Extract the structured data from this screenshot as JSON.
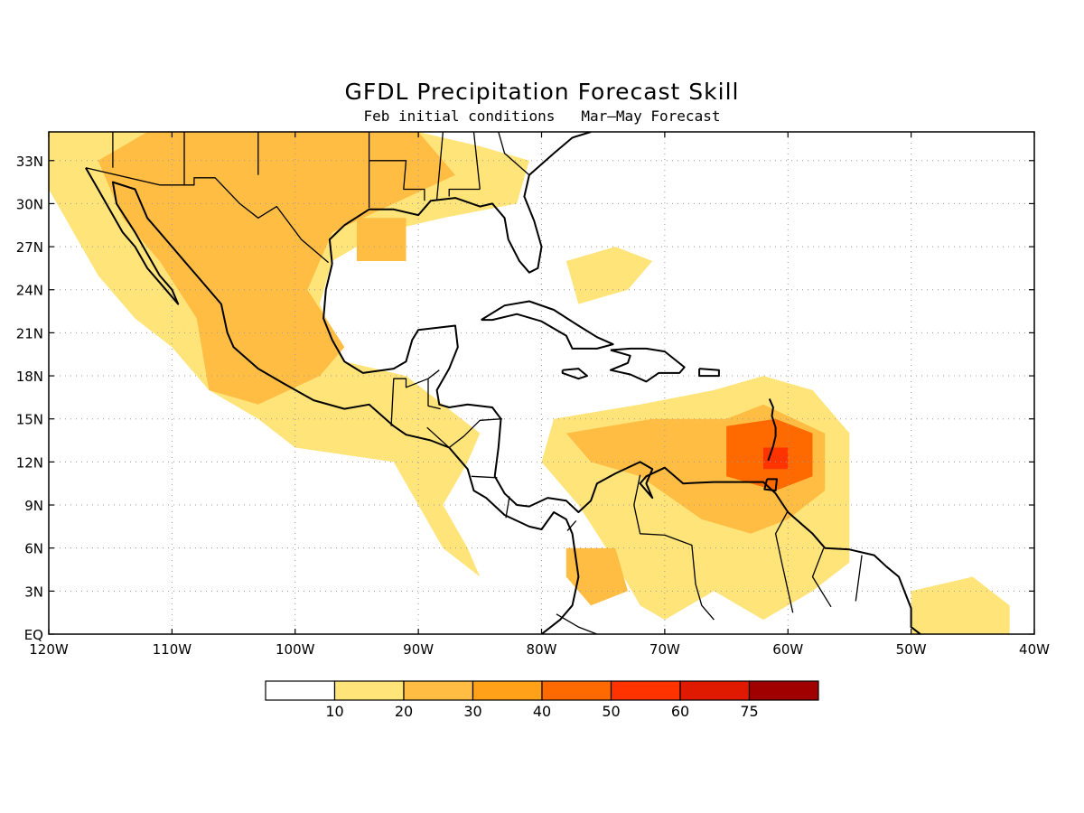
{
  "map": {
    "title": "GFDL Precipitation Forecast Skill",
    "subtitle": "Feb initial conditions   Mar–May Forecast",
    "lon_range": [
      -120,
      -40
    ],
    "lat_range": [
      0,
      35
    ],
    "grid": "dotted",
    "lon_ticks": [
      {
        "value": -120,
        "label": "120W"
      },
      {
        "value": -110,
        "label": "110W"
      },
      {
        "value": -100,
        "label": "100W"
      },
      {
        "value": -90,
        "label": "90W"
      },
      {
        "value": -80,
        "label": "80W"
      },
      {
        "value": -70,
        "label": "70W"
      },
      {
        "value": -60,
        "label": "60W"
      },
      {
        "value": -50,
        "label": "50W"
      },
      {
        "value": -40,
        "label": "40W"
      }
    ],
    "lat_ticks": [
      {
        "value": 0,
        "label": "EQ"
      },
      {
        "value": 3,
        "label": "3N"
      },
      {
        "value": 6,
        "label": "6N"
      },
      {
        "value": 9,
        "label": "9N"
      },
      {
        "value": 12,
        "label": "12N"
      },
      {
        "value": 15,
        "label": "15N"
      },
      {
        "value": 18,
        "label": "18N"
      },
      {
        "value": 21,
        "label": "21N"
      },
      {
        "value": 24,
        "label": "24N"
      },
      {
        "value": 27,
        "label": "27N"
      },
      {
        "value": 30,
        "label": "30N"
      },
      {
        "value": 33,
        "label": "33N"
      }
    ]
  },
  "colorbar": {
    "colors": [
      "#ffffff",
      "#ffe47a",
      "#ffbd44",
      "#ffa21a",
      "#ff6a00",
      "#ff3300",
      "#e01a00",
      "#a00000"
    ],
    "labels": [
      "10",
      "20",
      "30",
      "40",
      "50",
      "60",
      "75"
    ]
  },
  "skill_regions": [
    {
      "level": 1,
      "points": [
        [
          -120,
          35
        ],
        [
          -90,
          35
        ],
        [
          -85,
          34
        ],
        [
          -81,
          33
        ],
        [
          -82,
          30
        ],
        [
          -88,
          29
        ],
        [
          -93,
          28
        ],
        [
          -97,
          26
        ],
        [
          -98,
          23
        ],
        [
          -96,
          19
        ],
        [
          -91,
          18
        ],
        [
          -88,
          16
        ],
        [
          -85,
          14
        ],
        [
          -86,
          12
        ],
        [
          -88,
          9
        ],
        [
          -86,
          6
        ],
        [
          -85,
          4
        ],
        [
          -88,
          6
        ],
        [
          -90,
          9
        ],
        [
          -92,
          12
        ],
        [
          -100,
          13
        ],
        [
          -103,
          15
        ],
        [
          -107,
          17
        ],
        [
          -110,
          20
        ],
        [
          -113,
          22
        ],
        [
          -116,
          25
        ],
        [
          -118,
          28
        ],
        [
          -120,
          31
        ]
      ]
    },
    {
      "level": 1,
      "points": [
        [
          -79,
          15
        ],
        [
          -72,
          16
        ],
        [
          -66,
          17
        ],
        [
          -62,
          18
        ],
        [
          -58,
          17
        ],
        [
          -55,
          14
        ],
        [
          -55,
          5
        ],
        [
          -58,
          3
        ],
        [
          -62,
          1
        ],
        [
          -66,
          3
        ],
        [
          -70,
          1
        ],
        [
          -72,
          2
        ],
        [
          -74,
          5
        ],
        [
          -77,
          9
        ],
        [
          -80,
          12
        ]
      ]
    },
    {
      "level": 1,
      "points": [
        [
          -50,
          3
        ],
        [
          -45,
          4
        ],
        [
          -42,
          2
        ],
        [
          -42,
          0
        ],
        [
          -50,
          0
        ]
      ]
    },
    {
      "level": 1,
      "points": [
        [
          -78,
          26
        ],
        [
          -74,
          27
        ],
        [
          -71,
          26
        ],
        [
          -73,
          24
        ],
        [
          -77,
          23
        ]
      ]
    },
    {
      "level": 2,
      "points": [
        [
          -112,
          35
        ],
        [
          -90,
          35
        ],
        [
          -87,
          32
        ],
        [
          -92,
          30
        ],
        [
          -97,
          28
        ],
        [
          -99,
          24
        ],
        [
          -96,
          20
        ],
        [
          -98,
          18
        ],
        [
          -103,
          16
        ],
        [
          -107,
          17
        ],
        [
          -108,
          22
        ],
        [
          -111,
          26
        ],
        [
          -114,
          29
        ],
        [
          -116,
          33
        ]
      ]
    },
    {
      "level": 2,
      "points": [
        [
          -78,
          14
        ],
        [
          -71,
          15
        ],
        [
          -65,
          15
        ],
        [
          -62,
          16
        ],
        [
          -57,
          14
        ],
        [
          -57,
          10
        ],
        [
          -60,
          8
        ],
        [
          -63,
          7
        ],
        [
          -67,
          8
        ],
        [
          -72,
          11
        ],
        [
          -76,
          12
        ]
      ]
    },
    {
      "level": 2,
      "points": [
        [
          -78,
          6
        ],
        [
          -74,
          6
        ],
        [
          -73,
          3
        ],
        [
          -76,
          2
        ],
        [
          -78,
          4
        ]
      ]
    },
    {
      "level": 2,
      "points": [
        [
          -95,
          29
        ],
        [
          -91,
          29
        ],
        [
          -91,
          26
        ],
        [
          -95,
          26
        ]
      ]
    },
    {
      "level": 4,
      "points": [
        [
          -65,
          14.5
        ],
        [
          -61,
          15
        ],
        [
          -58,
          14
        ],
        [
          -58,
          11
        ],
        [
          -61,
          10
        ],
        [
          -65,
          11
        ]
      ]
    },
    {
      "level": 5,
      "points": [
        [
          -62,
          13
        ],
        [
          -60,
          13
        ],
        [
          -60,
          11.5
        ],
        [
          -62,
          11.5
        ]
      ]
    }
  ],
  "coastlines": [
    [
      [
        -117,
        32.5
      ],
      [
        -116,
        31
      ],
      [
        -115,
        29.5
      ],
      [
        -114,
        28
      ],
      [
        -113,
        27
      ],
      [
        -112,
        25.5
      ],
      [
        -110.5,
        24
      ],
      [
        -109.5,
        23
      ],
      [
        -110,
        24
      ],
      [
        -111,
        25
      ],
      [
        -112,
        26.5
      ],
      [
        -113,
        28
      ],
      [
        -114.5,
        30
      ],
      [
        -114.8,
        31.5
      ],
      [
        -113,
        31
      ],
      [
        -112,
        29
      ],
      [
        -110.5,
        27.5
      ],
      [
        -109,
        26
      ],
      [
        -108,
        25
      ],
      [
        -106,
        23
      ],
      [
        -105.5,
        21
      ],
      [
        -105,
        20
      ],
      [
        -103,
        18.5
      ],
      [
        -101,
        17.5
      ],
      [
        -98.5,
        16.3
      ],
      [
        -96,
        15.7
      ],
      [
        -94,
        16
      ],
      [
        -92,
        14.5
      ],
      [
        -91,
        13.9
      ],
      [
        -89,
        13.5
      ],
      [
        -87.5,
        13
      ],
      [
        -86,
        11.5
      ],
      [
        -85.5,
        10
      ],
      [
        -84.5,
        9.5
      ],
      [
        -83,
        8.3
      ],
      [
        -81,
        7.5
      ],
      [
        -80,
        7.3
      ],
      [
        -79,
        8.5
      ],
      [
        -78,
        8
      ],
      [
        -77.5,
        7
      ],
      [
        -77,
        4
      ],
      [
        -77.5,
        2
      ],
      [
        -78.5,
        1
      ],
      [
        -80,
        0
      ]
    ],
    [
      [
        -97,
        25.8
      ],
      [
        -97.5,
        24
      ],
      [
        -97.7,
        22
      ],
      [
        -97,
        20.5
      ],
      [
        -96,
        19
      ],
      [
        -94.5,
        18.2
      ],
      [
        -92,
        18.5
      ],
      [
        -91,
        19
      ],
      [
        -90.5,
        20.5
      ],
      [
        -90,
        21.2
      ],
      [
        -87,
        21.5
      ],
      [
        -86.8,
        20
      ],
      [
        -87.5,
        18.5
      ],
      [
        -88.5,
        17
      ],
      [
        -88.3,
        16
      ],
      [
        -87.5,
        15.8
      ],
      [
        -86,
        16
      ],
      [
        -84,
        15.8
      ],
      [
        -83.3,
        15
      ],
      [
        -83.5,
        13
      ],
      [
        -83.8,
        11
      ],
      [
        -83,
        9.8
      ],
      [
        -82,
        9
      ],
      [
        -81,
        8.9
      ],
      [
        -79.5,
        9.5
      ],
      [
        -78,
        9.3
      ],
      [
        -77,
        8.5
      ],
      [
        -76,
        9.3
      ],
      [
        -75.5,
        10.5
      ],
      [
        -74,
        11.2
      ],
      [
        -72,
        12
      ],
      [
        -71,
        11.5
      ],
      [
        -71.5,
        10.5
      ],
      [
        -71,
        9.5
      ],
      [
        -72,
        10.5
      ],
      [
        -71.5,
        11
      ],
      [
        -70,
        11.6
      ],
      [
        -68.5,
        10.5
      ],
      [
        -66,
        10.6
      ],
      [
        -64,
        10.6
      ],
      [
        -62,
        10.6
      ],
      [
        -61,
        9.8
      ],
      [
        -60,
        8.5
      ],
      [
        -58,
        7
      ],
      [
        -57,
        6
      ],
      [
        -55,
        5.9
      ],
      [
        -53,
        5.5
      ],
      [
        -52,
        4.7
      ],
      [
        -51,
        4
      ],
      [
        -50,
        1.8
      ],
      [
        -50,
        0.5
      ],
      [
        -48.5,
        -0.5
      ]
    ],
    [
      [
        -97,
        25.8
      ],
      [
        -97.2,
        27.5
      ],
      [
        -96,
        28.5
      ],
      [
        -94,
        29.6
      ],
      [
        -92,
        29.6
      ],
      [
        -90,
        29.2
      ],
      [
        -89,
        30.2
      ],
      [
        -87,
        30.4
      ],
      [
        -85,
        29.8
      ],
      [
        -84,
        30
      ],
      [
        -83,
        29
      ],
      [
        -82.7,
        27.5
      ],
      [
        -81.8,
        26
      ],
      [
        -81,
        25.2
      ],
      [
        -80.3,
        25.5
      ],
      [
        -80,
        27
      ],
      [
        -80.6,
        28.8
      ],
      [
        -81.4,
        30.5
      ],
      [
        -81,
        32
      ],
      [
        -79,
        33.5
      ],
      [
        -77.5,
        34.6
      ],
      [
        -76,
        35
      ]
    ],
    [
      [
        -84.9,
        21.9
      ],
      [
        -83,
        22.9
      ],
      [
        -81,
        23.2
      ],
      [
        -79,
        22.6
      ],
      [
        -77,
        21.5
      ],
      [
        -75.5,
        20.7
      ],
      [
        -74.2,
        20.2
      ],
      [
        -75.5,
        19.9
      ],
      [
        -77.5,
        19.9
      ],
      [
        -78,
        20.8
      ],
      [
        -80,
        21.8
      ],
      [
        -82,
        22.3
      ],
      [
        -84,
        21.9
      ],
      [
        -84.9,
        21.9
      ]
    ],
    [
      [
        -74.4,
        19.8
      ],
      [
        -72.8,
        19.9
      ],
      [
        -71.5,
        19.9
      ],
      [
        -70,
        19.7
      ],
      [
        -68.4,
        18.6
      ],
      [
        -68.8,
        18.2
      ],
      [
        -70.5,
        18.2
      ],
      [
        -71.5,
        17.6
      ],
      [
        -72.8,
        18.1
      ],
      [
        -74.4,
        18.4
      ],
      [
        -73,
        18.9
      ],
      [
        -72.8,
        19.4
      ],
      [
        -74.4,
        19.8
      ]
    ],
    [
      [
        -78.3,
        18.4
      ],
      [
        -77,
        18.5
      ],
      [
        -76.3,
        18
      ],
      [
        -77,
        17.8
      ],
      [
        -78.3,
        18.2
      ],
      [
        -78.3,
        18.4
      ]
    ],
    [
      [
        -67.2,
        18.5
      ],
      [
        -65.6,
        18.4
      ],
      [
        -65.6,
        18
      ],
      [
        -67.2,
        18
      ],
      [
        -67.2,
        18.5
      ]
    ],
    [
      [
        -61.7,
        10.8
      ],
      [
        -60.9,
        10.8
      ],
      [
        -61,
        10
      ],
      [
        -61.9,
        10.1
      ],
      [
        -61.7,
        10.8
      ]
    ],
    [
      [
        -61.5,
        16.4
      ],
      [
        -61.2,
        15.8
      ],
      [
        -61.3,
        15.2
      ],
      [
        -61,
        14.4
      ],
      [
        -61,
        13.8
      ],
      [
        -61.2,
        13.1
      ],
      [
        -61.6,
        12.1
      ]
    ]
  ],
  "borders": [
    [
      [
        -117,
        32.5
      ],
      [
        -111,
        31.3
      ],
      [
        -108.2,
        31.3
      ],
      [
        -108.2,
        31.8
      ],
      [
        -106.5,
        31.8
      ],
      [
        -104.5,
        30
      ],
      [
        -103,
        29
      ],
      [
        -101.5,
        29.8
      ],
      [
        -99.5,
        27.5
      ],
      [
        -97.3,
        25.9
      ]
    ],
    [
      [
        -92.2,
        14.5
      ],
      [
        -92,
        17.8
      ],
      [
        -91,
        17.8
      ],
      [
        -91,
        17.2
      ],
      [
        -89.2,
        17.8
      ],
      [
        -88.3,
        18.4
      ]
    ],
    [
      [
        -89.2,
        17.8
      ],
      [
        -89.2,
        15.9
      ],
      [
        -88.2,
        15.7
      ]
    ],
    [
      [
        -89.3,
        14.4
      ],
      [
        -87.5,
        13
      ],
      [
        -86.3,
        13.8
      ],
      [
        -85,
        14.9
      ],
      [
        -83.2,
        15
      ]
    ],
    [
      [
        -85.7,
        11
      ],
      [
        -83.6,
        10.9
      ]
    ],
    [
      [
        -82.6,
        9.6
      ],
      [
        -82.9,
        8.1
      ]
    ],
    [
      [
        -77.2,
        7.9
      ],
      [
        -77.9,
        7.2
      ]
    ],
    [
      [
        -72,
        11.1
      ],
      [
        -72.5,
        9
      ],
      [
        -72,
        7
      ],
      [
        -70,
        6.9
      ],
      [
        -67.8,
        6.2
      ],
      [
        -67.5,
        3.5
      ],
      [
        -67,
        2
      ],
      [
        -66,
        1
      ]
    ],
    [
      [
        -60,
        8.6
      ],
      [
        -61,
        7
      ],
      [
        -60.5,
        5
      ],
      [
        -59.6,
        1.5
      ]
    ],
    [
      [
        -57.1,
        6
      ],
      [
        -58,
        4
      ],
      [
        -56.5,
        1.9
      ]
    ],
    [
      [
        -54,
        5.5
      ],
      [
        -54.5,
        2.3
      ]
    ],
    [
      [
        -75.2,
        -0.1
      ],
      [
        -77,
        0.5
      ],
      [
        -78.8,
        1.4
      ]
    ],
    [
      [
        -114.8,
        32.5
      ],
      [
        -114.8,
        35
      ]
    ],
    [
      [
        -109,
        31.3
      ],
      [
        -109,
        35
      ]
    ],
    [
      [
        -103,
        32
      ],
      [
        -103,
        35
      ]
    ],
    [
      [
        -94,
        33
      ],
      [
        -94,
        35
      ]
    ],
    [
      [
        -94,
        33
      ],
      [
        -91,
        33
      ],
      [
        -91.2,
        31
      ],
      [
        -89.5,
        31
      ],
      [
        -89.5,
        30.2
      ]
    ],
    [
      [
        -88.5,
        30.3
      ],
      [
        -88,
        35
      ]
    ],
    [
      [
        -85,
        31
      ],
      [
        -87.5,
        31
      ],
      [
        -87.5,
        30.5
      ]
    ],
    [
      [
        -85,
        31
      ],
      [
        -85.5,
        35
      ]
    ],
    [
      [
        -81,
        32
      ],
      [
        -83,
        33.5
      ],
      [
        -83.5,
        35
      ]
    ],
    [
      [
        -94,
        29.7
      ],
      [
        -94,
        33
      ]
    ]
  ]
}
